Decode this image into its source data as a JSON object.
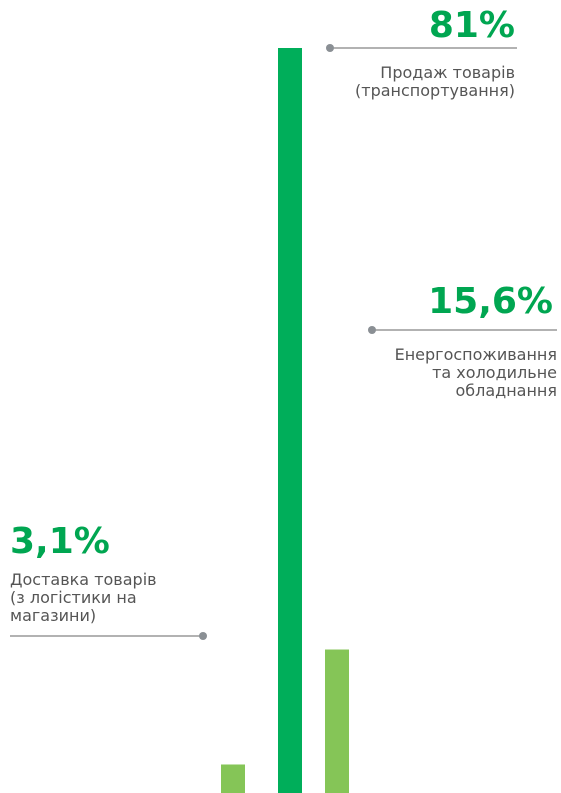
{
  "chart_data": {
    "type": "bar",
    "categories": [
      "Доставка товарів\n(з логістики на\nмагазини)",
      "Продаж товарів\n(транспортування)",
      "Енергоспоживання\nта холодильне\nобладнання"
    ],
    "values": [
      3.1,
      81,
      15.6
    ],
    "value_labels": [
      "3,1%",
      "81%",
      "15,6%"
    ],
    "colors": [
      "#85c557",
      "#00ae5a",
      "#85c557"
    ]
  }
}
